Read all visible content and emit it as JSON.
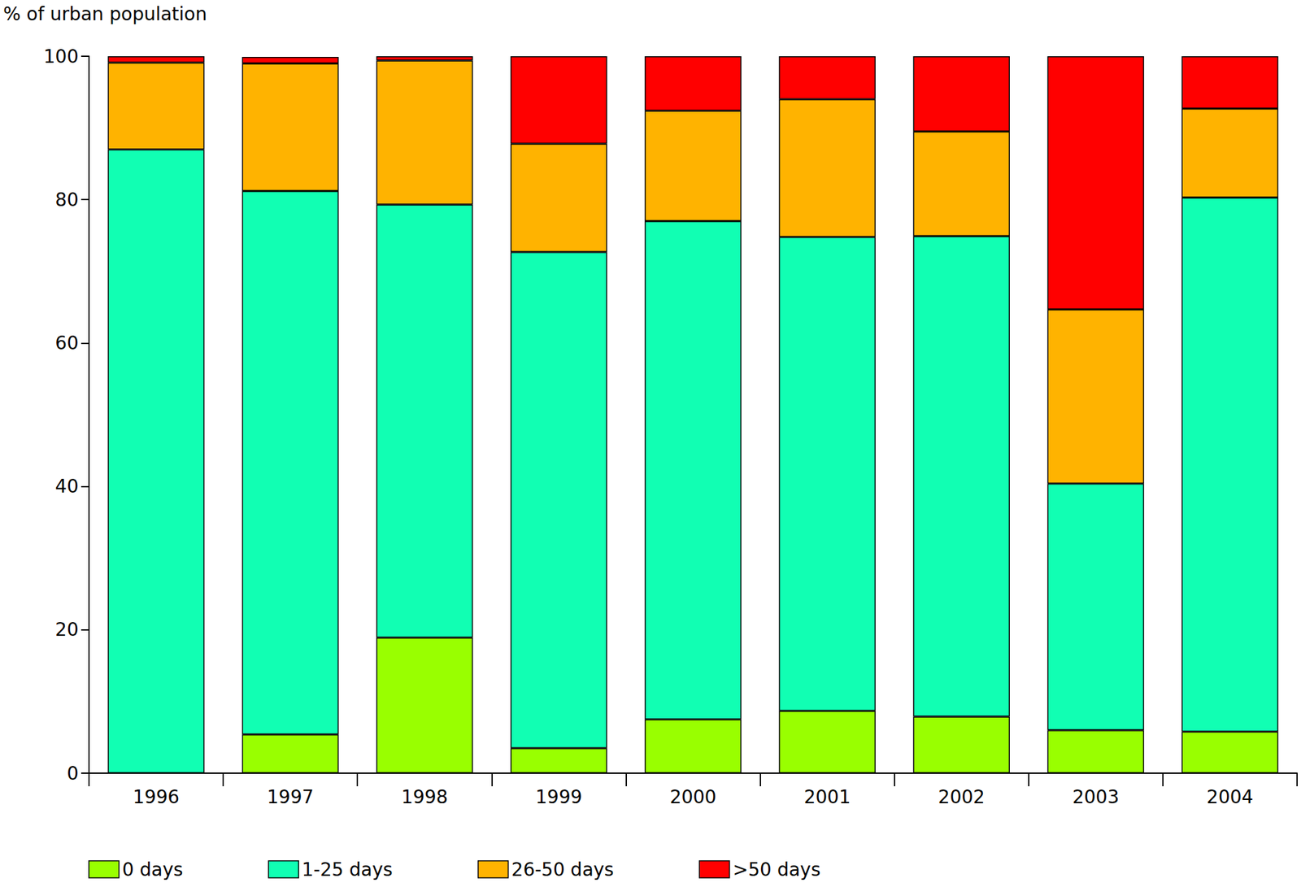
{
  "chart_data": {
    "type": "bar",
    "stacked": true,
    "y_label": "% of urban population",
    "categories": [
      "1996",
      "1997",
      "1998",
      "1999",
      "2000",
      "2001",
      "2002",
      "2003",
      "2004"
    ],
    "series": [
      {
        "name": "0 days",
        "color": "#99ff00",
        "values": [
          0,
          5.4,
          18.9,
          3.5,
          7.5,
          8.7,
          7.9,
          6.0,
          5.8
        ]
      },
      {
        "name": "1-25 days",
        "color": "#11ffb3",
        "values": [
          87.0,
          75.8,
          60.4,
          69.2,
          69.5,
          66.1,
          67.0,
          34.4,
          74.5
        ]
      },
      {
        "name": "26-50 days",
        "color": "#ffb300",
        "values": [
          12.1,
          17.8,
          20.1,
          15.1,
          15.4,
          19.2,
          14.6,
          24.3,
          12.4
        ]
      },
      {
        "name": ">50 days",
        "color": "#ff0000",
        "values": [
          0.9,
          0.9,
          0.6,
          12.2,
          7.6,
          6.0,
          10.5,
          35.3,
          7.3
        ]
      }
    ],
    "ylim": [
      0,
      100
    ],
    "yticks": [
      0,
      20,
      40,
      60,
      80,
      100
    ],
    "grid": false,
    "legend": "bottom",
    "data_labels": false
  }
}
